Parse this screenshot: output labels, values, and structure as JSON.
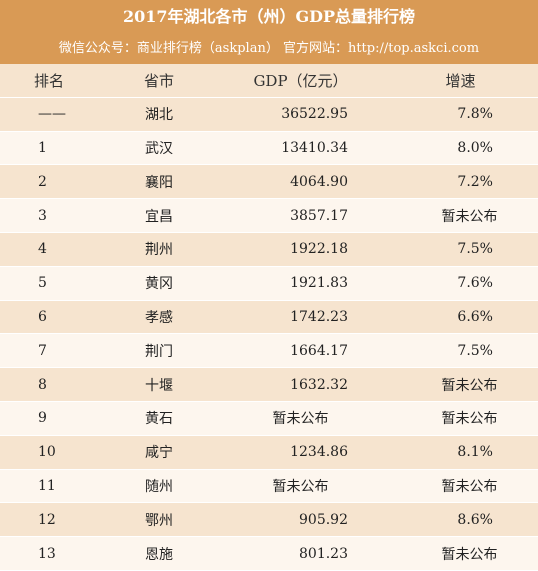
{
  "header": {
    "title": "2017年湖北各市（州）GDP总量排行榜",
    "subtitle": "微信公众号：商业排行榜（askplan）  官方网站：http://top.askci.com"
  },
  "columns": {
    "rank": "排名",
    "province": "省市",
    "gdp": "GDP（亿元）",
    "growth": "增速"
  },
  "rows": [
    {
      "rank": "——",
      "province": "湖北",
      "gdp": "36522.95",
      "growth": "7.8%"
    },
    {
      "rank": "1",
      "province": "武汉",
      "gdp": "13410.34",
      "growth": "8.0%"
    },
    {
      "rank": "2",
      "province": "襄阳",
      "gdp": "4064.90",
      "growth": "7.2%"
    },
    {
      "rank": "3",
      "province": "宜昌",
      "gdp": "3857.17",
      "growth": "暂未公布"
    },
    {
      "rank": "4",
      "province": "荆州",
      "gdp": "1922.18",
      "growth": "7.5%"
    },
    {
      "rank": "5",
      "province": "黄冈",
      "gdp": "1921.83",
      "growth": "7.6%"
    },
    {
      "rank": "6",
      "province": "孝感",
      "gdp": "1742.23",
      "growth": "6.6%"
    },
    {
      "rank": "7",
      "province": "荆门",
      "gdp": "1664.17",
      "growth": "7.5%"
    },
    {
      "rank": "8",
      "province": "十堰",
      "gdp": "1632.32",
      "growth": "暂未公布"
    },
    {
      "rank": "9",
      "province": "黄石",
      "gdp": "暂未公布",
      "growth": "暂未公布"
    },
    {
      "rank": "10",
      "province": "咸宁",
      "gdp": "1234.86",
      "growth": "8.1%"
    },
    {
      "rank": "11",
      "province": "随州",
      "gdp": "暂未公布",
      "growth": "暂未公布"
    },
    {
      "rank": "12",
      "province": "鄂州",
      "gdp": "905.92",
      "growth": "8.6%"
    },
    {
      "rank": "13",
      "province": "恩施",
      "gdp": "801.23",
      "growth": "暂未公布"
    }
  ]
}
